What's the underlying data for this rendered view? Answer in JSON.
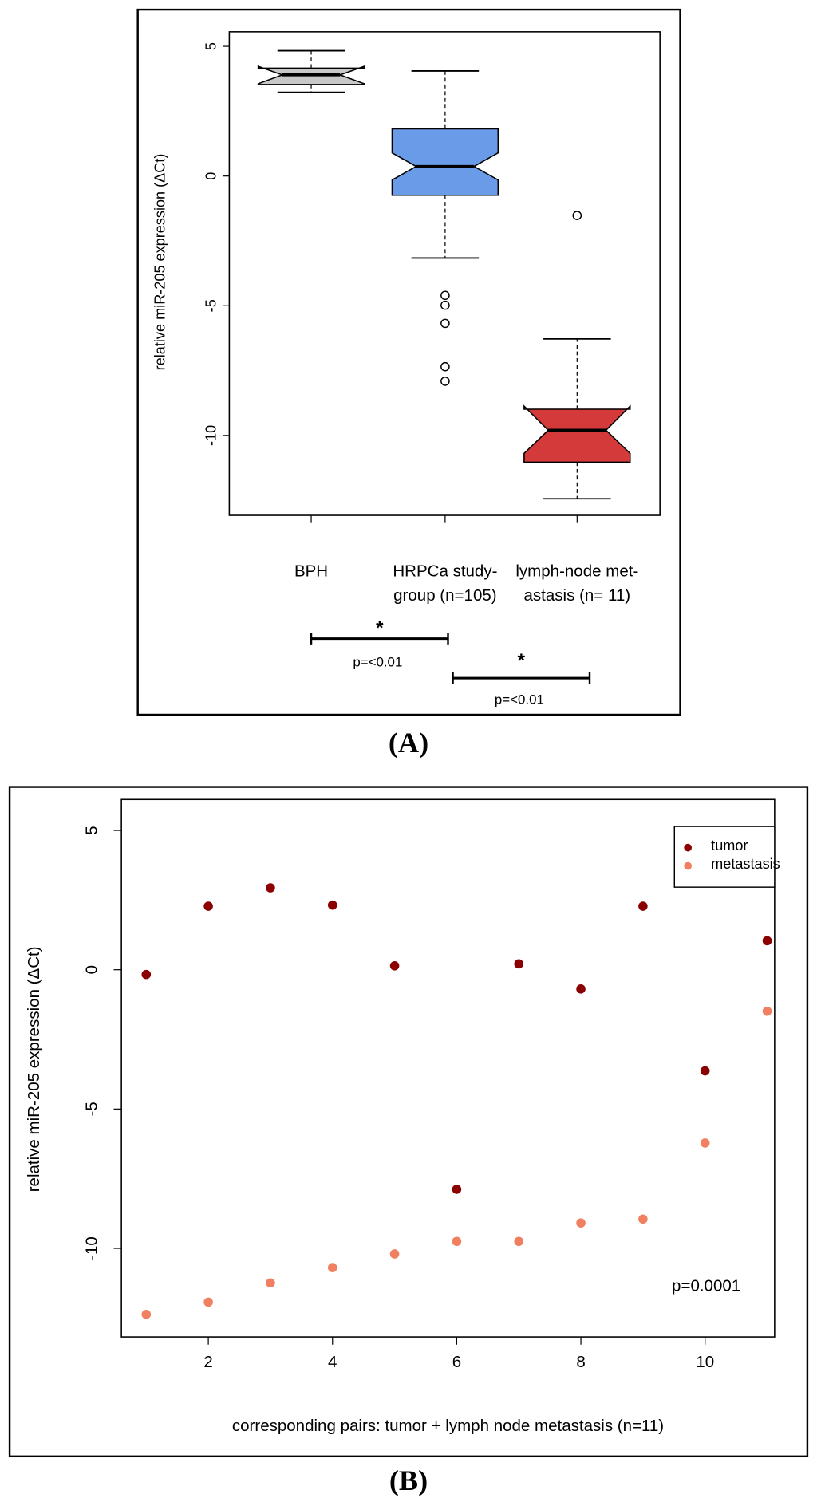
{
  "chart_data": [
    {
      "type": "box",
      "panel_label": "(A)",
      "ylabel": "relative miR-205 expression (ΔCt)",
      "categories": [
        [
          "BPH"
        ],
        [
          "HRPCa study-",
          "group (n=105)"
        ],
        [
          "lymph-node met-",
          "astasis (n= 11)"
        ]
      ],
      "boxes": [
        {
          "whisker_low": 3.23,
          "q1": 3.53,
          "median": 3.9,
          "q3": 4.16,
          "whisker_high": 4.83,
          "notch_low": 3.56,
          "notch_high": 4.23,
          "outliers": [],
          "color": "#c8c8c8"
        },
        {
          "whisker_low": -3.16,
          "q1": -0.74,
          "median": 0.37,
          "q3": 1.82,
          "whisker_high": 4.05,
          "notch_low": -0.15,
          "notch_high": 0.89,
          "outliers": [
            -4.6,
            -4.98,
            -5.68,
            -7.35,
            -7.91
          ],
          "color": "#6a9be8"
        },
        {
          "whisker_low": -12.44,
          "q1": -11.03,
          "median": -9.8,
          "q3": -8.99,
          "whisker_high": -6.28,
          "notch_low": -10.69,
          "notch_high": -8.87,
          "outliers": [
            -1.52
          ],
          "color": "#d43a3a"
        }
      ],
      "ylim": [
        -13.08,
        5.56
      ],
      "yticks": [
        -10,
        -5,
        0,
        5
      ],
      "annotations": [
        {
          "text": "*",
          "label": "p=<0.01"
        },
        {
          "text": "*",
          "label": "p=<0.01"
        }
      ]
    },
    {
      "type": "scatter",
      "panel_label": "(B)",
      "xlabel": "corresponding pairs:  tumor + lymph node metastasis (n=11)",
      "ylabel": "relative miR-205 expression (ΔCt)",
      "x": [
        1,
        2,
        3,
        4,
        5,
        6,
        7,
        8,
        9,
        10,
        11
      ],
      "series": [
        {
          "name": "tumor",
          "color": "#8b0000",
          "values": [
            -0.17,
            2.28,
            2.94,
            2.32,
            0.14,
            -7.88,
            0.21,
            -0.69,
            2.28,
            -3.63,
            1.04
          ]
        },
        {
          "name": "metastasis",
          "color": "#f08060",
          "values": [
            -12.37,
            -11.93,
            -11.24,
            -10.69,
            -10.2,
            -9.75,
            -9.75,
            -9.09,
            -8.95,
            -6.22,
            -1.49
          ]
        }
      ],
      "xlim": [
        0.6,
        11.12
      ],
      "xticks": [
        2,
        4,
        6,
        8,
        10
      ],
      "ylim": [
        -13.18,
        6.11
      ],
      "yticks": [
        -10,
        -5,
        0,
        5
      ],
      "legend": "upper right",
      "annotation": "p=0.0001"
    }
  ]
}
